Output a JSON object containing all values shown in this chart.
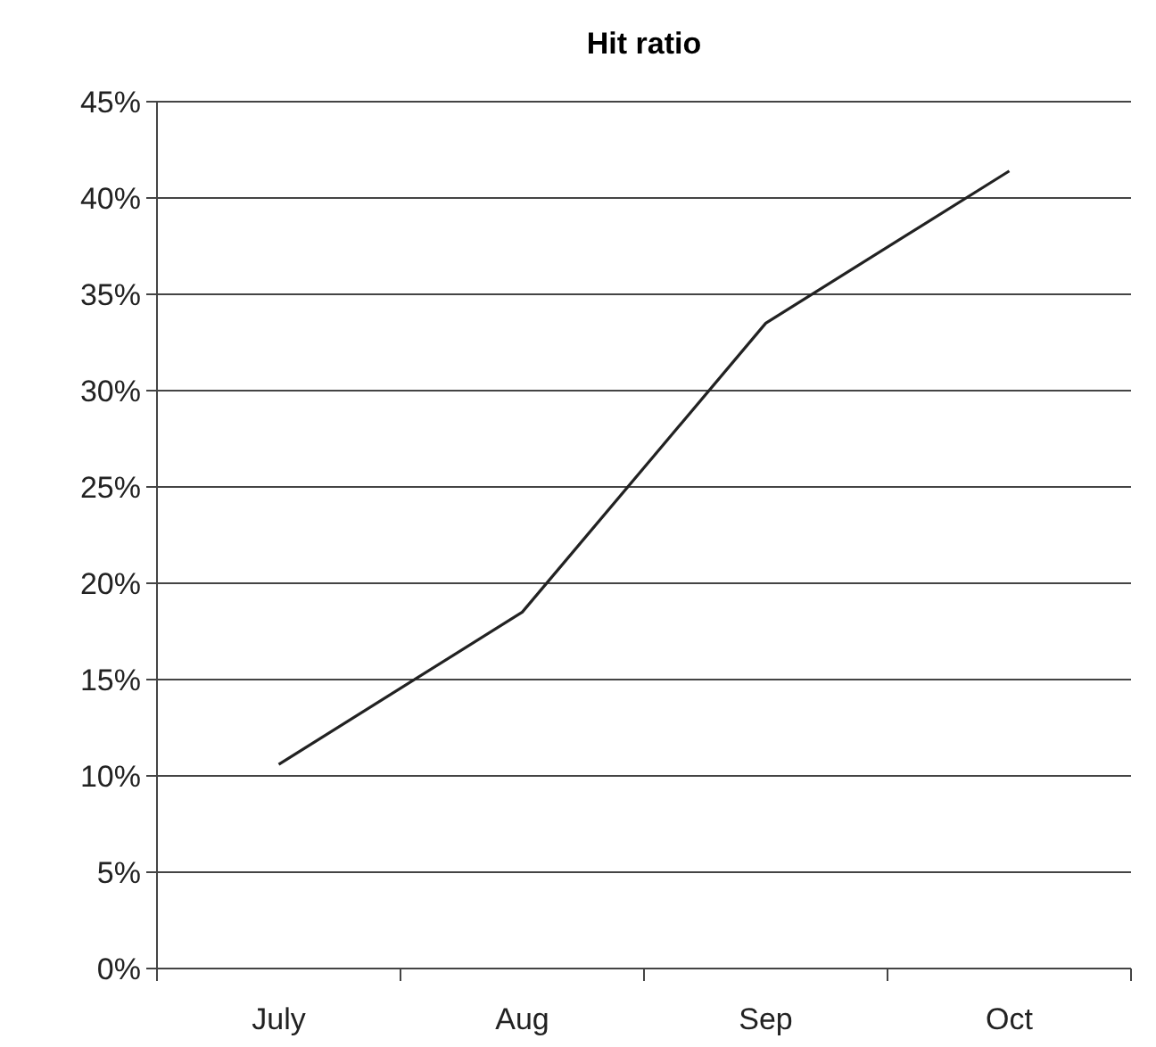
{
  "chart_data": {
    "type": "line",
    "title": "Hit ratio",
    "categories": [
      "July",
      "Aug",
      "Sep",
      "Oct"
    ],
    "series": [
      {
        "color": "#222222",
        "values": [
          10.6,
          18.5,
          33.5,
          41.4
        ]
      }
    ],
    "ylim": [
      0,
      45
    ],
    "yticks": [
      {
        "value": 0,
        "label": "0%"
      },
      {
        "value": 5,
        "label": "5%"
      },
      {
        "value": 10,
        "label": "10%"
      },
      {
        "value": 15,
        "label": "15%"
      },
      {
        "value": 20,
        "label": "20%"
      },
      {
        "value": 25,
        "label": "25%"
      },
      {
        "value": 30,
        "label": "30%"
      },
      {
        "value": 35,
        "label": "35%"
      },
      {
        "value": 40,
        "label": "40%"
      },
      {
        "value": 45,
        "label": "45%"
      }
    ],
    "grid": "y",
    "marker": "none",
    "line_style": "solid"
  }
}
